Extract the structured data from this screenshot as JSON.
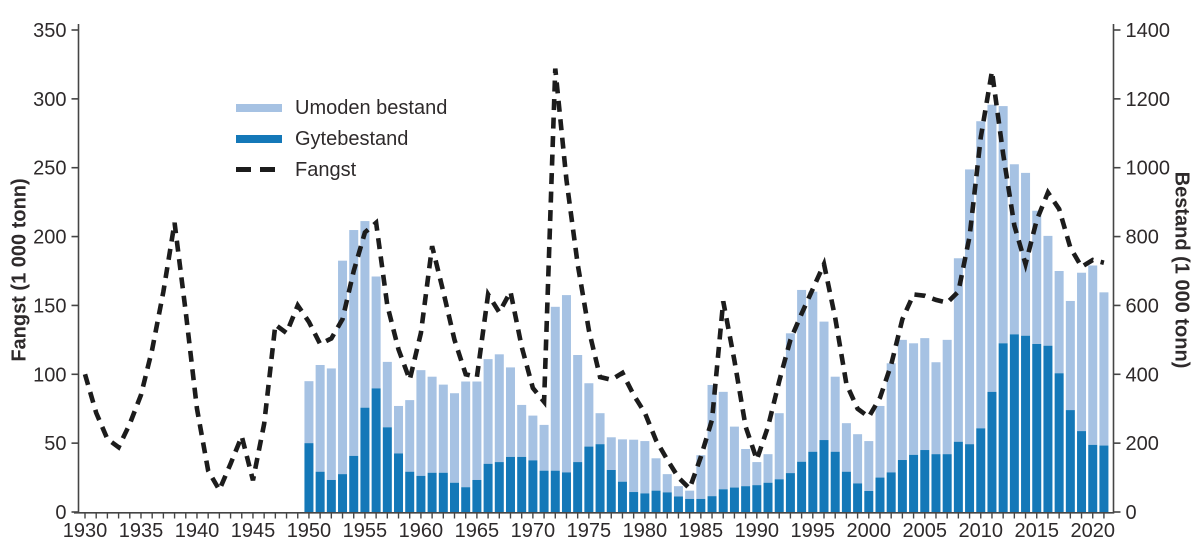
{
  "chart_data": {
    "type": "bar",
    "subtype": "stacked-bars-with-dashed-line",
    "title": "",
    "colors": {
      "umoden_bestand": "#a6c2e3",
      "gytebestand": "#1478b8",
      "fangst_line": "#1c1c1c",
      "axis": "#454545",
      "text": "#2e2a2b",
      "background": "#ffffff"
    },
    "legend": [
      {
        "label": "Umoden bestand",
        "type": "bar",
        "color": "#a6c2e3"
      },
      {
        "label": "Gytebestand",
        "type": "bar",
        "color": "#1478b8"
      },
      {
        "label": "Fangst",
        "type": "dashed-line",
        "color": "#1c1c1c"
      }
    ],
    "left_axis": {
      "label": "Fangst  (1 000 tonn)",
      "min": 0,
      "max": 350,
      "ticks": [
        0,
        50,
        100,
        150,
        200,
        250,
        300,
        350
      ]
    },
    "right_axis": {
      "label": "Bestand (1 000 tonn)",
      "min": 0,
      "max": 1400,
      "ticks": [
        0,
        200,
        400,
        600,
        800,
        1000,
        1200,
        1400
      ]
    },
    "x_axis": {
      "min": 1930,
      "max": 2021,
      "labeled_ticks": [
        1930,
        1935,
        1940,
        1945,
        1950,
        1955,
        1960,
        1965,
        1970,
        1975,
        1980,
        1985,
        1990,
        1995,
        2000,
        2005,
        2010,
        2015,
        2020
      ],
      "minor_tick_every_year": true
    },
    "bars": {
      "axis": "right",
      "stack_order_bottom_to_top": [
        "gytebestand",
        "umoden_bestand"
      ],
      "years": [
        1950,
        1951,
        1952,
        1953,
        1954,
        1955,
        1956,
        1957,
        1958,
        1959,
        1960,
        1961,
        1962,
        1963,
        1964,
        1965,
        1966,
        1967,
        1968,
        1969,
        1970,
        1971,
        1972,
        1973,
        1974,
        1975,
        1976,
        1977,
        1978,
        1979,
        1980,
        1981,
        1982,
        1983,
        1984,
        1985,
        1986,
        1987,
        1988,
        1989,
        1990,
        1991,
        1992,
        1993,
        1994,
        1995,
        1996,
        1997,
        1998,
        1999,
        2000,
        2001,
        2002,
        2003,
        2004,
        2005,
        2006,
        2007,
        2008,
        2009,
        2010,
        2011,
        2012,
        2013,
        2014,
        2015,
        2016,
        2017,
        2018,
        2019,
        2020,
        2021
      ],
      "gytebestand": [
        200,
        117,
        93,
        110,
        163,
        303,
        359,
        246,
        170,
        117,
        105,
        114,
        114,
        85,
        72,
        93,
        140,
        145,
        160,
        160,
        150,
        120,
        120,
        115,
        145,
        190,
        197,
        122,
        88,
        58,
        54,
        62,
        57,
        45,
        38,
        38,
        46,
        66,
        71,
        75,
        78,
        85,
        95,
        113,
        146,
        175,
        209,
        175,
        117,
        83,
        61,
        100,
        115,
        151,
        166,
        180,
        168,
        168,
        204,
        197,
        243,
        349,
        490,
        516,
        512,
        488,
        483,
        403,
        296,
        235,
        195,
        193
      ],
      "umoden_bestand": [
        180,
        310,
        324,
        620,
        656,
        542,
        325,
        190,
        138,
        208,
        307,
        279,
        256,
        260,
        307,
        286,
        304,
        313,
        260,
        151,
        130,
        133,
        476,
        515,
        311,
        184,
        90,
        95,
        123,
        152,
        152,
        94,
        53,
        30,
        24,
        127,
        323,
        283,
        177,
        108,
        67,
        83,
        192,
        406,
        499,
        465,
        344,
        218,
        141,
        143,
        145,
        208,
        317,
        349,
        324,
        325,
        267,
        332,
        533,
        798,
        892,
        834,
        689,
        494,
        473,
        387,
        319,
        297,
        317,
        460,
        521,
        445
      ]
    },
    "line": {
      "name": "Fangst",
      "axis": "left",
      "years": [
        1930,
        1931,
        1932,
        1933,
        1934,
        1935,
        1936,
        1937,
        1938,
        1939,
        1940,
        1941,
        1942,
        1943,
        1944,
        1945,
        1946,
        1947,
        1948,
        1949,
        1950,
        1951,
        1952,
        1953,
        1954,
        1955,
        1956,
        1957,
        1958,
        1959,
        1960,
        1961,
        1962,
        1963,
        1964,
        1965,
        1966,
        1967,
        1968,
        1969,
        1970,
        1971,
        1972,
        1973,
        1974,
        1975,
        1976,
        1977,
        1978,
        1979,
        1980,
        1981,
        1982,
        1983,
        1984,
        1985,
        1986,
        1987,
        1988,
        1989,
        1990,
        1991,
        1992,
        1993,
        1994,
        1995,
        1996,
        1997,
        1998,
        1999,
        2000,
        2001,
        2002,
        2003,
        2004,
        2005,
        2006,
        2007,
        2008,
        2009,
        2010,
        2011,
        2012,
        2013,
        2014,
        2015,
        2016,
        2017,
        2018,
        2019,
        2020,
        2021
      ],
      "values": [
        100,
        72,
        53,
        47,
        64,
        85,
        118,
        160,
        210,
        145,
        75,
        30,
        16,
        35,
        55,
        23,
        64,
        136,
        130,
        150,
        138,
        122,
        126,
        140,
        175,
        203,
        210,
        150,
        118,
        96,
        130,
        193,
        160,
        125,
        100,
        98,
        158,
        145,
        160,
        120,
        90,
        80,
        322,
        241,
        180,
        132,
        98,
        96,
        101,
        85,
        72,
        52,
        38,
        25,
        17,
        40,
        67,
        153,
        110,
        62,
        38,
        62,
        95,
        125,
        144,
        162,
        180,
        141,
        93,
        75,
        69,
        83,
        107,
        140,
        158,
        157,
        154,
        152,
        160,
        200,
        272,
        320,
        260,
        208,
        180,
        212,
        232,
        220,
        192,
        178,
        183,
        181
      ]
    }
  }
}
